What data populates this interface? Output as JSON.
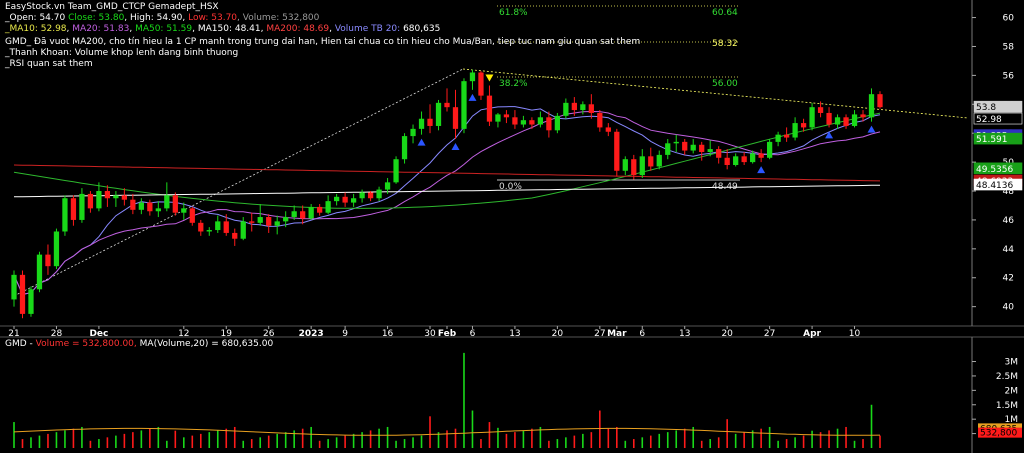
{
  "header": {
    "line1": "EasyStock.vn Team_GMD_CTCP Gemadept_HSX",
    "open_label": "_Open:",
    "open": "54.70",
    "close_label": "Close:",
    "close": "53.80",
    "high_label": "High:",
    "high": "54.90",
    "low_label": "Low:",
    "low": "53.70",
    "volume_label": "Volume:",
    "volume": "532,800",
    "ma10": "_MA10: 52.98",
    "ma20": "MA20: 51.83",
    "ma50": "MA50: 51.59",
    "ma150": "MA150: 48.41",
    "ma200": "MA200: 48.69",
    "vol_tb": "Volume TB 20:",
    "vol_tb_value": "680,635",
    "note1": "GMD_ Đã vuot MA200, cho tín hieu la 1 CP manh trong trung dai han, Hien tai chua co tin hieu cho Mua/Ban, tiep tuc nam giu quan sat them",
    "note2": "_Thanh Khoan: Volume khop lenh dang binh thuong",
    "note3": "_RSI quan sat them"
  },
  "volume_header": {
    "prefix": "GMD - ",
    "vol_text": "Volume = 532,800.00,",
    "ma_text": "MA(Volume,20) = 680,635.00"
  },
  "colors": {
    "up": "#19d919",
    "down": "#ff1a1a",
    "bg": "#000000",
    "axis": "#ffffff",
    "ma10": "#8888ff",
    "ma20": "#c060e0",
    "ma50": "#2eb82e",
    "ma150": "#ffffff",
    "ma200": "#cc2222",
    "fib": "#ffff66",
    "signal_up": "#2b55ff",
    "signal_down": "#ffee00"
  },
  "chart_data": {
    "type": "candlestick",
    "price_axis": {
      "ticks": [
        "60",
        "58",
        "56",
        "54",
        "52",
        "50",
        "48",
        "46",
        "44",
        "42",
        "40"
      ],
      "range": [
        38.8,
        60.8
      ]
    },
    "x_labels": [
      {
        "label": "21",
        "i": 0
      },
      {
        "label": "28",
        "i": 5
      },
      {
        "label": "Dec",
        "i": 10
      },
      {
        "label": "12",
        "i": 20
      },
      {
        "label": "19",
        "i": 25
      },
      {
        "label": "26",
        "i": 30
      },
      {
        "label": "2023",
        "i": 35
      },
      {
        "label": "9",
        "i": 39
      },
      {
        "label": "16",
        "i": 44
      },
      {
        "label": "30",
        "i": 49
      },
      {
        "label": "Feb",
        "i": 51
      },
      {
        "label": "6",
        "i": 54
      },
      {
        "label": "13",
        "i": 59
      },
      {
        "label": "20",
        "i": 64
      },
      {
        "label": "27",
        "i": 69
      },
      {
        "label": "Mar",
        "i": 71
      },
      {
        "label": "6",
        "i": 74
      },
      {
        "label": "13",
        "i": 79
      },
      {
        "label": "20",
        "i": 84
      },
      {
        "label": "27",
        "i": 89
      },
      {
        "label": "Apr",
        "i": 94
      },
      {
        "label": "10",
        "i": 99
      }
    ],
    "ohlc": [
      [
        40.5,
        42.5,
        40.0,
        42.2
      ],
      [
        42.2,
        42.5,
        39.2,
        39.5
      ],
      [
        39.5,
        41.4,
        39.3,
        41.2
      ],
      [
        41.2,
        43.8,
        41.0,
        43.6
      ],
      [
        43.6,
        44.3,
        42.2,
        42.8
      ],
      [
        42.8,
        45.4,
        42.6,
        45.2
      ],
      [
        45.2,
        47.7,
        44.9,
        47.5
      ],
      [
        47.5,
        47.7,
        45.6,
        46.0
      ],
      [
        46.0,
        48.2,
        45.8,
        47.8
      ],
      [
        47.8,
        48.0,
        46.5,
        46.8
      ],
      [
        46.8,
        48.6,
        46.6,
        48.0
      ],
      [
        48.0,
        48.4,
        46.9,
        47.5
      ],
      [
        47.5,
        48.0,
        46.9,
        47.7
      ],
      [
        47.7,
        48.2,
        47.0,
        47.4
      ],
      [
        47.4,
        47.8,
        46.4,
        46.7
      ],
      [
        46.7,
        47.5,
        46.4,
        47.2
      ],
      [
        47.2,
        47.4,
        46.3,
        46.6
      ],
      [
        46.6,
        47.3,
        46.2,
        46.8
      ],
      [
        46.8,
        48.6,
        46.6,
        47.7
      ],
      [
        47.7,
        47.9,
        46.3,
        46.5
      ],
      [
        46.5,
        47.2,
        46.0,
        46.8
      ],
      [
        46.8,
        46.9,
        45.6,
        45.8
      ],
      [
        45.8,
        46.0,
        44.9,
        45.2
      ],
      [
        45.2,
        45.5,
        44.9,
        45.3
      ],
      [
        45.3,
        46.3,
        45.1,
        45.9
      ],
      [
        45.9,
        46.4,
        44.9,
        45.1
      ],
      [
        45.1,
        45.4,
        44.2,
        44.7
      ],
      [
        44.7,
        46.2,
        44.6,
        45.9
      ],
      [
        45.9,
        46.5,
        45.2,
        45.8
      ],
      [
        45.8,
        47.1,
        45.6,
        46.2
      ],
      [
        46.2,
        46.4,
        45.1,
        45.6
      ],
      [
        45.6,
        46.3,
        45.0,
        45.9
      ],
      [
        45.9,
        46.6,
        45.5,
        46.2
      ],
      [
        46.2,
        47.0,
        46.0,
        46.6
      ],
      [
        46.6,
        47.0,
        45.7,
        46.1
      ],
      [
        46.1,
        47.1,
        46.0,
        46.9
      ],
      [
        46.9,
        47.1,
        46.3,
        46.5
      ],
      [
        46.5,
        47.7,
        46.4,
        47.3
      ],
      [
        47.3,
        47.8,
        47.0,
        47.6
      ],
      [
        47.6,
        47.9,
        46.9,
        47.2
      ],
      [
        47.2,
        47.8,
        46.9,
        47.5
      ],
      [
        47.5,
        48.1,
        47.2,
        47.9
      ],
      [
        47.9,
        48.0,
        47.3,
        47.5
      ],
      [
        47.5,
        48.3,
        47.3,
        48.1
      ],
      [
        48.1,
        48.9,
        47.8,
        48.6
      ],
      [
        48.6,
        50.4,
        48.5,
        50.2
      ],
      [
        50.2,
        52.0,
        49.9,
        51.8
      ],
      [
        51.8,
        52.6,
        51.3,
        52.3
      ],
      [
        52.3,
        53.5,
        51.9,
        53.0
      ],
      [
        53.0,
        54.0,
        52.0,
        52.5
      ],
      [
        52.5,
        54.3,
        52.2,
        54.1
      ],
      [
        54.1,
        55.1,
        53.5,
        53.8
      ],
      [
        53.8,
        55.0,
        51.6,
        52.3
      ],
      [
        52.3,
        55.8,
        52.0,
        55.6
      ],
      [
        55.6,
        56.4,
        55.0,
        56.2
      ],
      [
        56.2,
        56.3,
        54.3,
        54.6
      ],
      [
        54.6,
        55.3,
        52.5,
        52.8
      ],
      [
        52.8,
        53.4,
        52.4,
        53.3
      ],
      [
        53.3,
        53.6,
        52.7,
        53.1
      ],
      [
        53.1,
        53.6,
        52.3,
        52.6
      ],
      [
        52.6,
        53.2,
        52.4,
        52.9
      ],
      [
        52.9,
        53.1,
        52.3,
        52.6
      ],
      [
        52.6,
        53.5,
        52.4,
        53.1
      ],
      [
        53.1,
        53.5,
        51.7,
        52.2
      ],
      [
        52.2,
        53.4,
        52.0,
        53.2
      ],
      [
        53.2,
        54.4,
        53.0,
        54.1
      ],
      [
        54.1,
        54.5,
        53.2,
        53.6
      ],
      [
        53.6,
        54.2,
        53.3,
        54.0
      ],
      [
        54.0,
        54.7,
        53.0,
        53.4
      ],
      [
        53.4,
        53.6,
        52.1,
        52.4
      ],
      [
        52.4,
        52.7,
        51.8,
        52.1
      ],
      [
        52.1,
        52.3,
        49.0,
        49.4
      ],
      [
        49.4,
        50.4,
        49.1,
        50.2
      ],
      [
        50.2,
        50.5,
        48.8,
        49.1
      ],
      [
        49.1,
        50.9,
        48.9,
        50.4
      ],
      [
        50.4,
        51.0,
        49.4,
        49.7
      ],
      [
        49.7,
        50.8,
        49.5,
        50.5
      ],
      [
        50.5,
        51.6,
        50.2,
        51.3
      ],
      [
        51.3,
        51.9,
        50.7,
        51.4
      ],
      [
        51.4,
        51.6,
        50.5,
        50.8
      ],
      [
        50.8,
        51.6,
        50.6,
        51.2
      ],
      [
        51.2,
        51.4,
        50.1,
        50.7
      ],
      [
        50.7,
        51.5,
        50.4,
        50.9
      ],
      [
        50.9,
        51.1,
        49.9,
        50.3
      ],
      [
        50.3,
        50.9,
        49.5,
        49.8
      ],
      [
        49.8,
        50.6,
        49.7,
        50.4
      ],
      [
        50.4,
        50.7,
        49.8,
        50.0
      ],
      [
        50.0,
        50.8,
        49.9,
        50.6
      ],
      [
        50.6,
        50.9,
        50.0,
        50.3
      ],
      [
        50.3,
        51.6,
        50.2,
        51.4
      ],
      [
        51.4,
        52.1,
        51.1,
        51.9
      ],
      [
        51.9,
        52.4,
        51.4,
        51.7
      ],
      [
        51.7,
        53.1,
        51.5,
        52.7
      ],
      [
        52.7,
        53.0,
        52.1,
        52.4
      ],
      [
        52.4,
        54.1,
        52.2,
        53.8
      ],
      [
        53.8,
        54.2,
        53.1,
        53.4
      ],
      [
        53.4,
        53.8,
        52.4,
        52.6
      ],
      [
        52.6,
        53.3,
        52.3,
        53.1
      ],
      [
        53.1,
        53.3,
        52.3,
        52.5
      ],
      [
        52.5,
        53.6,
        52.4,
        53.3
      ],
      [
        53.3,
        53.6,
        52.8,
        53.1
      ],
      [
        53.1,
        55.1,
        52.8,
        54.7
      ],
      [
        54.7,
        54.9,
        53.7,
        53.8
      ]
    ],
    "ma10_last": 52.98,
    "ma20_last": 51.83,
    "ma50_last": 51.59,
    "ma150_last": 48.41,
    "ma200_last": 48.69,
    "fib_levels": [
      {
        "label": "61.8%",
        "value": "60.64"
      },
      {
        "label": "",
        "value": "58.32"
      },
      {
        "label": "38.2%",
        "value": "56.00"
      },
      {
        "label": "0.0%",
        "value": "48.49"
      }
    ],
    "right_tags": [
      {
        "text": "53.8",
        "bg": "#d0d0d0",
        "fg": "#000000",
        "price": 53.8
      },
      {
        "text": "52.98",
        "bg": "#000000",
        "fg": "#ffffff",
        "price": 52.98
      },
      {
        "text": "51.835",
        "bg": "#3030c0",
        "fg": "#ffffff",
        "price": 51.835
      },
      {
        "text": "51.591",
        "bg": "#18a018",
        "fg": "#ffffff",
        "price": 51.591
      },
      {
        "text": "49.5356",
        "bg": "#18a018",
        "fg": "#ffffff",
        "price": 49.5356
      },
      {
        "text": "48.6933",
        "bg": "#c01818",
        "fg": "#ffffff",
        "price": 48.6933
      },
      {
        "text": "48.4136",
        "bg": "#ffffff",
        "fg": "#000000",
        "price": 48.4136
      }
    ],
    "volume_axis": {
      "ticks": [
        "3M",
        "2.5M",
        "2M",
        "1.5M",
        "1M",
        "0.5M"
      ],
      "range": [
        0,
        3400000
      ]
    },
    "volume_tags": [
      {
        "text": "680,635",
        "bg": "#e8a020",
        "fg": "#000000",
        "value": 680635
      },
      {
        "text": "532,800",
        "bg": "#ff1a1a",
        "fg": "#000000",
        "value": 532800
      }
    ],
    "up_signal_indexes": [
      48,
      52,
      54,
      88,
      96,
      101
    ],
    "down_signal_indexes": [
      56
    ]
  }
}
